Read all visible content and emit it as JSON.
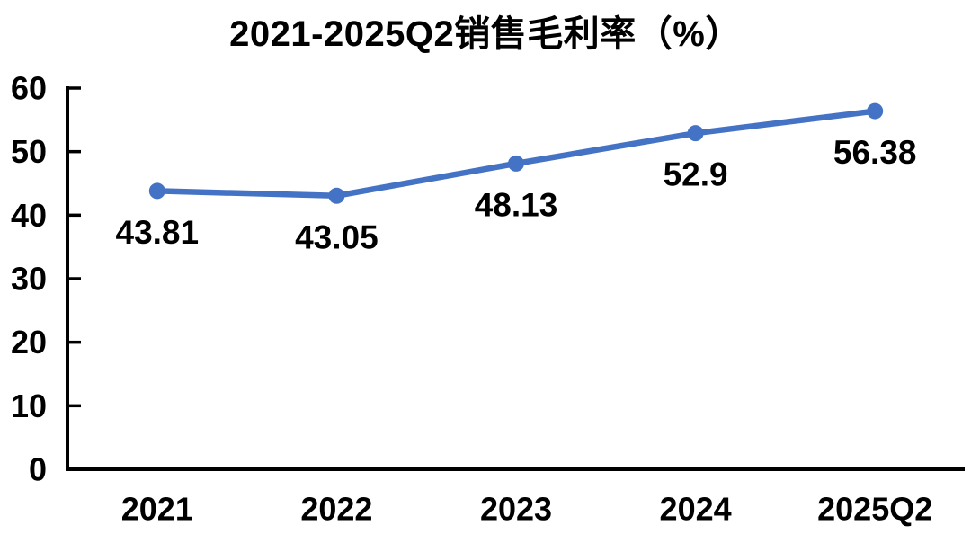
{
  "chart_data": {
    "type": "line",
    "title": "2021-2025Q2销售毛利率（%）",
    "categories": [
      "2021",
      "2022",
      "2023",
      "2024",
      "2025Q2"
    ],
    "series": [
      {
        "values": [
          43.81,
          43.05,
          48.13,
          52.9,
          56.38
        ],
        "point_labels": [
          "43.81",
          "43.05",
          "48.13",
          "52.9",
          "56.38"
        ],
        "color": "#4472C4",
        "marker": "circle",
        "data_label_position": "below"
      }
    ],
    "xlabel": "",
    "ylabel": "",
    "ylim": [
      0,
      60
    ],
    "yticks": [
      0,
      10,
      20,
      30,
      40,
      50,
      60
    ],
    "grid": false,
    "legend": "none",
    "axis_color": "#000000",
    "text_color": "#000000",
    "background_color": "#ffffff"
  }
}
